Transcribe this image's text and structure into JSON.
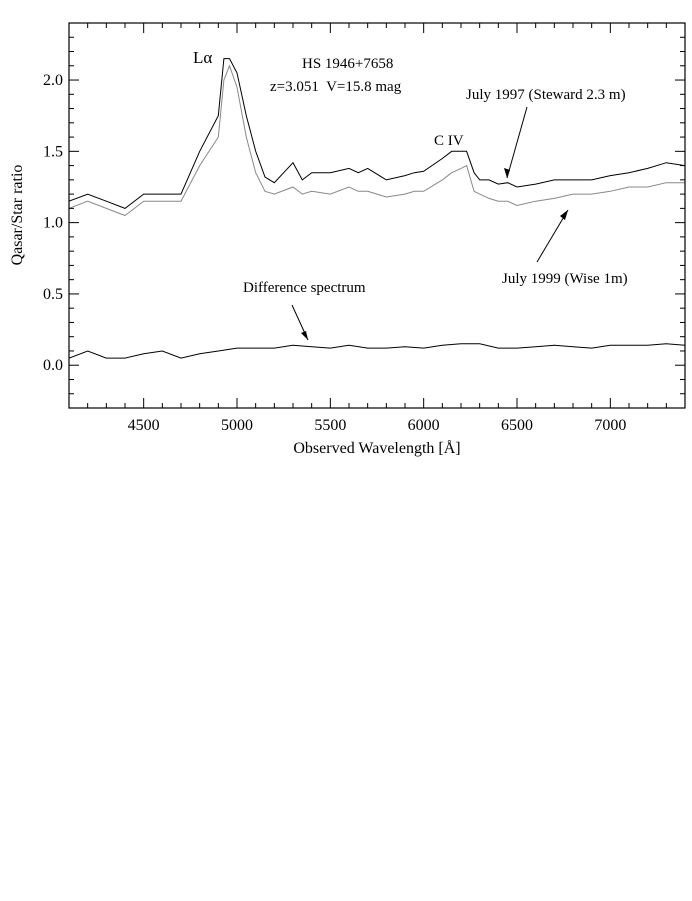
{
  "chart_data": {
    "type": "line",
    "title": "",
    "xlabel": "Observed Wavelength [Å]",
    "ylabel": "Qasar/Star ratio",
    "xlim": [
      4100,
      7400
    ],
    "ylim": [
      -0.3,
      2.4
    ],
    "x_ticks": [
      4500,
      5000,
      5500,
      6000,
      6500,
      7000
    ],
    "x_tick_labels": [
      "4500",
      "5000",
      "5500",
      "6000",
      "6500",
      "7000"
    ],
    "y_ticks": [
      0.0,
      0.5,
      1.0,
      1.5,
      2.0
    ],
    "y_tick_labels": [
      "0.0",
      "0.5",
      "1.0",
      "1.5",
      "2.0"
    ],
    "grid": false,
    "annotations": {
      "lyman_alpha": "Lα",
      "object_name": "HS 1946+7658",
      "object_params": "z=3.051  V=15.8 mag",
      "civ": "C IV",
      "july1997": "July 1997 (Steward 2.3 m)",
      "july1999": "July 1999 (Wise 1m)",
      "difference": "Difference spectrum"
    },
    "series": [
      {
        "color": "#000000",
        "x": [
          4100,
          4200,
          4300,
          4400,
          4500,
          4600,
          4700,
          4800,
          4900,
          4930,
          4960,
          5000,
          5050,
          5100,
          5150,
          5200,
          5300,
          5350,
          5400,
          5500,
          5600,
          5650,
          5700,
          5800,
          5900,
          5950,
          6000,
          6100,
          6150,
          6200,
          6230,
          6270,
          6300,
          6350,
          6400,
          6450,
          6500,
          6600,
          6700,
          6800,
          6900,
          7000,
          7100,
          7200,
          7300,
          7400
        ],
        "y": [
          1.15,
          1.2,
          1.15,
          1.1,
          1.2,
          1.2,
          1.2,
          1.5,
          1.75,
          2.15,
          2.15,
          2.05,
          1.75,
          1.5,
          1.32,
          1.28,
          1.42,
          1.3,
          1.35,
          1.35,
          1.38,
          1.35,
          1.38,
          1.3,
          1.33,
          1.35,
          1.36,
          1.45,
          1.5,
          1.5,
          1.5,
          1.35,
          1.3,
          1.3,
          1.27,
          1.28,
          1.25,
          1.27,
          1.3,
          1.3,
          1.3,
          1.33,
          1.35,
          1.38,
          1.42,
          1.4
        ]
      },
      {
        "color": "#888888",
        "x": [
          4100,
          4200,
          4300,
          4400,
          4500,
          4600,
          4700,
          4800,
          4900,
          4930,
          4960,
          5000,
          5050,
          5100,
          5150,
          5200,
          5300,
          5350,
          5400,
          5500,
          5600,
          5650,
          5700,
          5800,
          5900,
          5950,
          6000,
          6100,
          6150,
          6200,
          6230,
          6270,
          6300,
          6350,
          6400,
          6450,
          6500,
          6600,
          6700,
          6800,
          6900,
          7000,
          7100,
          7200,
          7300,
          7400
        ],
        "y": [
          1.1,
          1.15,
          1.1,
          1.05,
          1.15,
          1.15,
          1.15,
          1.4,
          1.6,
          2.0,
          2.1,
          1.95,
          1.6,
          1.35,
          1.22,
          1.2,
          1.25,
          1.2,
          1.22,
          1.2,
          1.25,
          1.22,
          1.22,
          1.18,
          1.2,
          1.22,
          1.22,
          1.3,
          1.35,
          1.38,
          1.4,
          1.22,
          1.2,
          1.17,
          1.15,
          1.15,
          1.12,
          1.15,
          1.17,
          1.2,
          1.2,
          1.22,
          1.25,
          1.25,
          1.28,
          1.28
        ]
      },
      {
        "color": "#000000",
        "x": [
          4100,
          4200,
          4300,
          4400,
          4500,
          4600,
          4700,
          4800,
          4900,
          5000,
          5100,
          5200,
          5300,
          5400,
          5500,
          5600,
          5700,
          5800,
          5900,
          6000,
          6100,
          6200,
          6300,
          6400,
          6500,
          6600,
          6700,
          6800,
          6900,
          7000,
          7100,
          7200,
          7300,
          7400
        ],
        "y": [
          0.05,
          0.1,
          0.05,
          0.05,
          0.08,
          0.1,
          0.05,
          0.08,
          0.1,
          0.12,
          0.12,
          0.12,
          0.14,
          0.13,
          0.12,
          0.14,
          0.12,
          0.12,
          0.13,
          0.12,
          0.14,
          0.15,
          0.15,
          0.12,
          0.12,
          0.13,
          0.14,
          0.13,
          0.12,
          0.14,
          0.14,
          0.14,
          0.15,
          0.14
        ]
      }
    ]
  }
}
